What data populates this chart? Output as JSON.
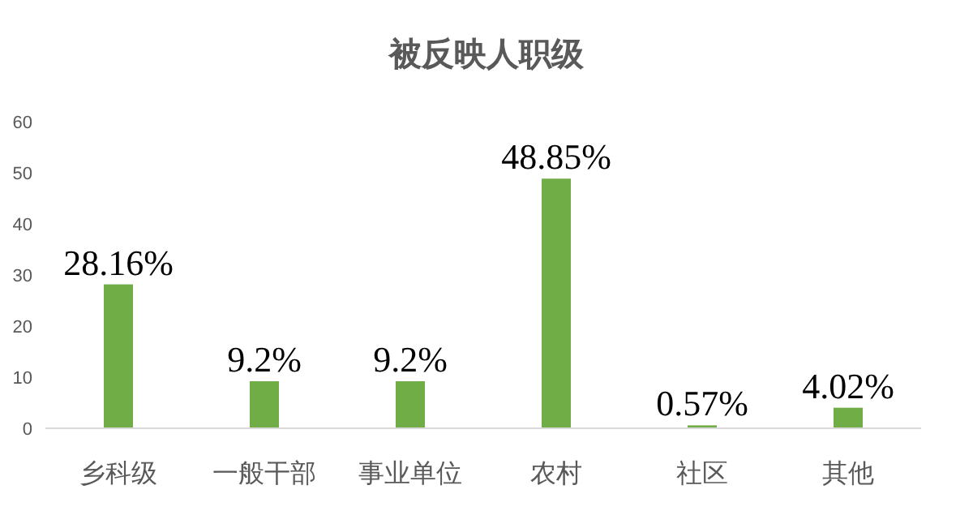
{
  "chart_data": {
    "type": "bar",
    "title": "被反映人职级",
    "categories": [
      "乡科级",
      "一般干部",
      "事业单位",
      "农村",
      "社区",
      "其他"
    ],
    "values": [
      28.16,
      9.2,
      9.2,
      48.85,
      0.57,
      4.02
    ],
    "value_labels": [
      "28.16%",
      "9.2%",
      "9.2%",
      "48.85%",
      "0.57%",
      "4.02%"
    ],
    "color": "#70ad47",
    "ylim": [
      0,
      60
    ],
    "yticks": [
      0,
      10,
      20,
      30,
      40,
      50,
      60
    ]
  }
}
